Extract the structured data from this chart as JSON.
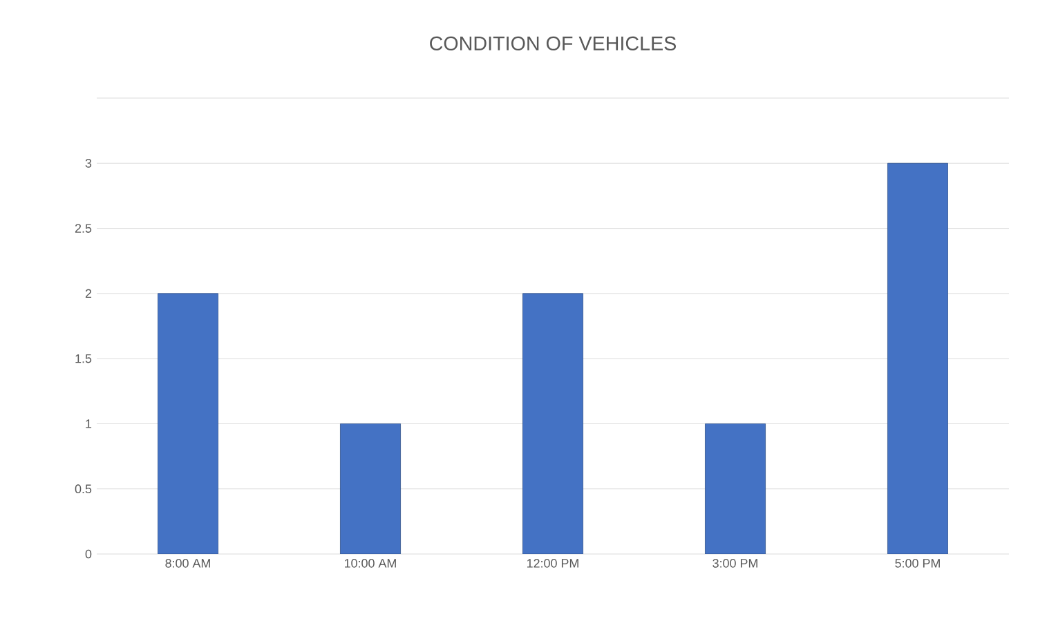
{
  "chart_data": {
    "type": "bar",
    "title": "CONDITION OF VEHICLES",
    "categories": [
      "8:00 AM",
      "10:00 AM",
      "12:00 PM",
      "3:00 PM",
      "5:00 PM"
    ],
    "values": [
      2,
      1,
      2,
      1,
      3
    ],
    "color": "#4472c4",
    "ylim": [
      0,
      3.5
    ],
    "yticks": [
      0,
      0.5,
      1,
      1.5,
      2,
      2.5,
      3,
      {
        "value": 3.5,
        "label": null
      }
    ],
    "grid": "y"
  }
}
